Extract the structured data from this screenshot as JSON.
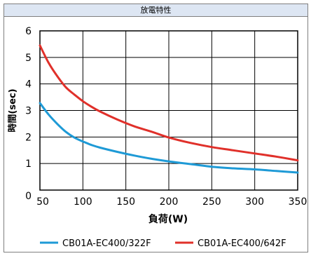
{
  "chart_data": {
    "type": "line",
    "title": "放電特性",
    "xlabel": "負荷(W)",
    "ylabel": "時間(sec)",
    "xlim": [
      50,
      350
    ],
    "ylim": [
      0,
      6
    ],
    "x_ticks": [
      "50",
      "100",
      "150",
      "200",
      "250",
      "300",
      "350"
    ],
    "y_ticks": [
      "0",
      "1",
      "2",
      "3",
      "4",
      "5",
      "6"
    ],
    "grid": true,
    "legend_position": "bottom",
    "series": [
      {
        "name": "CB01A-EC400/322F",
        "color": "#1e9ad6",
        "x": [
          50,
          60,
          70,
          80,
          90,
          100,
          110,
          120,
          140,
          160,
          180,
          200,
          225,
          250,
          275,
          300,
          325,
          350
        ],
        "y": [
          3.28,
          2.85,
          2.5,
          2.2,
          1.98,
          1.83,
          1.7,
          1.6,
          1.44,
          1.3,
          1.18,
          1.08,
          0.98,
          0.88,
          0.82,
          0.78,
          0.72,
          0.66
        ]
      },
      {
        "name": "CB01A-EC400/642F",
        "color": "#e0302a",
        "x": [
          50,
          60,
          70,
          80,
          90,
          100,
          110,
          120,
          140,
          160,
          180,
          200,
          225,
          250,
          275,
          300,
          325,
          350
        ],
        "y": [
          5.45,
          4.8,
          4.3,
          3.88,
          3.6,
          3.35,
          3.14,
          2.96,
          2.66,
          2.4,
          2.2,
          1.98,
          1.78,
          1.62,
          1.5,
          1.38,
          1.26,
          1.12
        ]
      }
    ]
  }
}
